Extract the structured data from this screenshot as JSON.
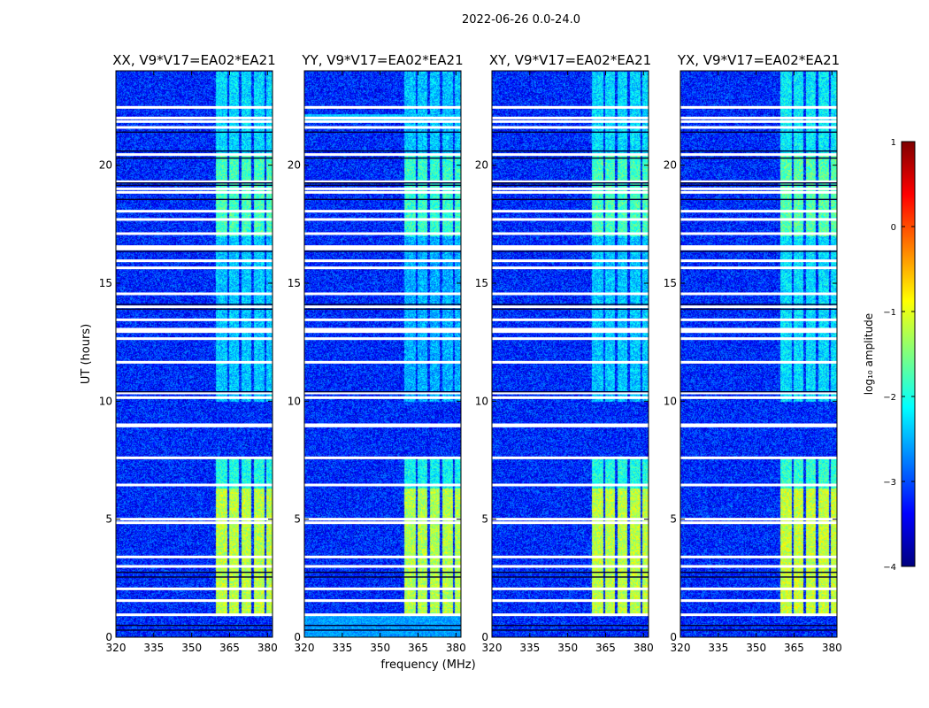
{
  "figure": {
    "suptitle": "2022-06-26 0.0-24.0",
    "ylabel": "UT (hours)",
    "xlabel": "frequency (MHz)"
  },
  "chart_data": {
    "type": "heatmap",
    "x_range": [
      320,
      382
    ],
    "y_range": [
      0,
      24
    ],
    "x_ticks": [
      320,
      335,
      350,
      365,
      380
    ],
    "y_ticks": [
      0,
      5,
      10,
      15,
      20
    ],
    "colorbar": {
      "label": "log₁₀ amplitude",
      "range": [
        -4,
        1
      ],
      "ticks": [
        1,
        0,
        -1,
        -2,
        -3,
        -4
      ],
      "tick_labels": [
        "1",
        "0",
        "−1",
        "−2",
        "−3",
        "−4"
      ],
      "colormap": [
        "#00007f",
        "#0000ff",
        "#007fff",
        "#00ffff",
        "#7fff7f",
        "#ffff00",
        "#ff7f00",
        "#ff0000",
        "#7f0000"
      ]
    },
    "background_level": -3.2,
    "rfi_bands_mhz": [
      [
        359.5,
        364
      ],
      [
        364.8,
        368.5
      ],
      [
        369.5,
        373.5
      ],
      [
        374.5,
        378.5
      ],
      [
        379.5,
        382
      ]
    ],
    "rfi_time_blocks": [
      {
        "t0": 0.9,
        "t1": 6.3,
        "level": -1.2
      },
      {
        "t0": 6.3,
        "t1": 7.6,
        "level": -2.0
      },
      {
        "t0": 10.0,
        "t1": 17.0,
        "level": -2.4
      },
      {
        "t0": 17.0,
        "t1": 20.5,
        "level": -1.8
      },
      {
        "t0": 20.5,
        "t1": 24.0,
        "level": -2.3
      }
    ],
    "white_gaps_hours": [
      0.95,
      1.55,
      2.05,
      3.0,
      3.4,
      4.85,
      5.0,
      6.45,
      7.6,
      8.95,
      9.0,
      10.15,
      10.35,
      11.65,
      12.65,
      12.95,
      13.05,
      13.45,
      14.0,
      14.55,
      15.65,
      15.95,
      16.45,
      16.55,
      17.1,
      17.7,
      18.05,
      18.85,
      19.0,
      19.3,
      20.45,
      21.6,
      21.85,
      22.0,
      22.45
    ],
    "dark_gaps_hours": [
      0.3,
      0.5,
      2.55,
      2.75,
      10.4,
      13.9,
      14.1,
      16.35,
      18.55,
      19.15,
      19.25,
      20.3,
      20.6,
      21.4
    ],
    "panels": [
      {
        "title": "XX, V9*V17=EA02*EA21",
        "rfi_scale": 1.0,
        "bottom_band": false,
        "top_band": false,
        "gain": 1.0
      },
      {
        "title": "YY, V9*V17=EA02*EA21",
        "rfi_scale": 1.05,
        "bottom_band": true,
        "top_band": true,
        "gain": 1.05
      },
      {
        "title": "XY, V9*V17=EA02*EA21",
        "rfi_scale": 1.0,
        "bottom_band": false,
        "top_band": false,
        "gain": 0.95
      },
      {
        "title": "YX, V9*V17=EA02*EA21",
        "rfi_scale": 0.95,
        "bottom_band": false,
        "top_band": false,
        "gain": 0.95
      }
    ]
  }
}
